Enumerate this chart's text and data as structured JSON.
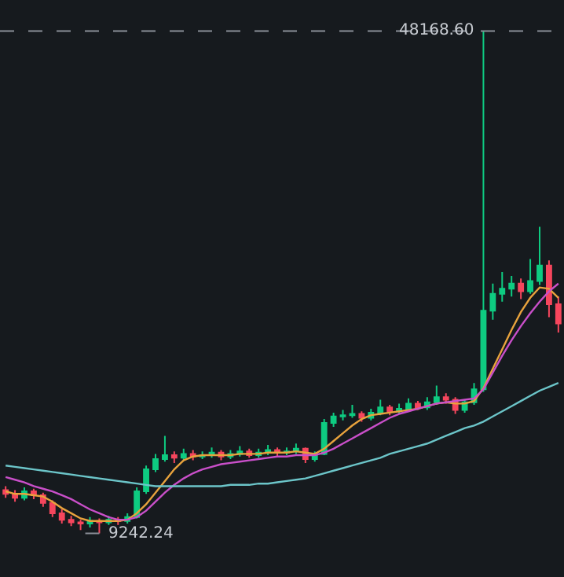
{
  "chart_data": {
    "type": "candlestick",
    "categories": [
      null,
      null,
      null,
      null,
      null,
      null,
      null,
      null,
      null,
      null,
      null,
      null,
      null,
      null,
      null,
      null,
      null,
      null,
      null,
      null,
      null,
      null,
      null,
      null,
      null,
      null,
      null,
      null,
      null,
      null,
      null,
      null,
      null,
      null,
      null,
      null,
      null,
      null,
      null,
      null,
      null,
      null,
      null,
      null,
      null,
      null,
      null,
      null,
      null,
      null,
      null,
      null,
      null,
      null,
      null,
      null,
      null,
      null,
      null,
      null
    ],
    "ohlc": [
      [
        12600,
        12900,
        12000,
        12300
      ],
      [
        12300,
        12600,
        11700,
        12000
      ],
      [
        12000,
        12800,
        11800,
        12500
      ],
      [
        12500,
        12700,
        11900,
        12200
      ],
      [
        12200,
        12400,
        11300,
        11600
      ],
      [
        11600,
        11800,
        10500,
        10800
      ],
      [
        10800,
        11100,
        10000,
        10300
      ],
      [
        10300,
        10600,
        9800,
        10100
      ],
      [
        10100,
        10300,
        9500,
        10000
      ],
      [
        10000,
        10500,
        9700,
        10200
      ],
      [
        10200,
        10400,
        9242.24,
        10100
      ],
      [
        10100,
        10600,
        9900,
        10300
      ],
      [
        10300,
        10500,
        9900,
        10200
      ],
      [
        10200,
        10800,
        10000,
        10500
      ],
      [
        10500,
        12800,
        10400,
        12500
      ],
      [
        12500,
        14500,
        12300,
        14200
      ],
      [
        14200,
        15400,
        14000,
        15000
      ],
      [
        15000,
        16800,
        14800,
        15300
      ],
      [
        15300,
        15600,
        14700,
        15100
      ],
      [
        15100,
        15800,
        14900,
        15400
      ],
      [
        15400,
        15700,
        14900,
        15200
      ],
      [
        15200,
        15600,
        15000,
        15300
      ],
      [
        15300,
        15900,
        15100,
        15500
      ],
      [
        15500,
        15700,
        14900,
        15200
      ],
      [
        15200,
        15700,
        15000,
        15400
      ],
      [
        15400,
        16000,
        15200,
        15600
      ],
      [
        15600,
        15800,
        15100,
        15300
      ],
      [
        15300,
        15800,
        15100,
        15500
      ],
      [
        15500,
        16100,
        15300,
        15700
      ],
      [
        15700,
        15900,
        15200,
        15500
      ],
      [
        15500,
        15900,
        15300,
        15600
      ],
      [
        15600,
        16200,
        15400,
        15800
      ],
      [
        15800,
        15900,
        14700,
        15000
      ],
      [
        15000,
        15600,
        14800,
        15400
      ],
      [
        15400,
        18100,
        15300,
        17800
      ],
      [
        17800,
        18600,
        17500,
        18300
      ],
      [
        18300,
        18800,
        18000,
        18400
      ],
      [
        18400,
        19200,
        18200,
        18500
      ],
      [
        18500,
        18700,
        17900,
        18200
      ],
      [
        18200,
        18900,
        18000,
        18600
      ],
      [
        18600,
        19600,
        18400,
        19000
      ],
      [
        19000,
        19200,
        18400,
        18700
      ],
      [
        18700,
        19300,
        18500,
        18900
      ],
      [
        18900,
        19700,
        18700,
        19300
      ],
      [
        19300,
        19500,
        18800,
        19000
      ],
      [
        19000,
        19800,
        18800,
        19400
      ],
      [
        19400,
        20700,
        19200,
        19800
      ],
      [
        19800,
        20100,
        19300,
        19600
      ],
      [
        19600,
        19800,
        18500,
        18800
      ],
      [
        18800,
        19600,
        18600,
        19400
      ],
      [
        19400,
        20900,
        19200,
        20400
      ],
      [
        20400,
        48168.6,
        20200,
        26500
      ],
      [
        26500,
        28600,
        25800,
        27800
      ],
      [
        27800,
        29500,
        27200,
        28200
      ],
      [
        28200,
        29200,
        27600,
        28600
      ],
      [
        28600,
        29000,
        27400,
        28000
      ],
      [
        28000,
        30500,
        27800,
        28800
      ],
      [
        28800,
        33000,
        28500,
        30000
      ],
      [
        30000,
        30400,
        26000,
        27000
      ],
      [
        27000,
        27600,
        24800,
        25500
      ]
    ],
    "colors": [
      "#f6465d",
      "#f6465d",
      "#0ecb81",
      "#f6465d",
      "#f6465d",
      "#f6465d",
      "#f6465d",
      "#f6465d",
      "#f6465d",
      "#0ecb81",
      "#f6465d",
      "#0ecb81",
      "#f6465d",
      "#0ecb81",
      "#0ecb81",
      "#0ecb81",
      "#0ecb81",
      "#0ecb81",
      "#f6465d",
      "#0ecb81",
      "#f6465d",
      "#0ecb81",
      "#0ecb81",
      "#f6465d",
      "#0ecb81",
      "#0ecb81",
      "#f6465d",
      "#0ecb81",
      "#0ecb81",
      "#f6465d",
      "#0ecb81",
      "#0ecb81",
      "#f6465d",
      "#0ecb81",
      "#0ecb81",
      "#0ecb81",
      "#0ecb81",
      "#0ecb81",
      "#f6465d",
      "#0ecb81",
      "#0ecb81",
      "#f6465d",
      "#0ecb81",
      "#0ecb81",
      "#f6465d",
      "#0ecb81",
      "#0ecb81",
      "#f6465d",
      "#f6465d",
      "#0ecb81",
      "#0ecb81",
      "#0ecb81",
      "#0ecb81",
      "#0ecb81",
      "#0ecb81",
      "#f6465d",
      "#0ecb81",
      "#0ecb81",
      "#f6465d",
      "#f6465d"
    ],
    "series": [
      {
        "type": "line",
        "color": "#e8a33d",
        "values": [
          12500,
          12300,
          12300,
          12200,
          12100,
          11700,
          11200,
          10800,
          10400,
          10200,
          10200,
          10200,
          10200,
          10300,
          10800,
          11500,
          12400,
          13300,
          14200,
          14900,
          15200,
          15300,
          15300,
          15300,
          15300,
          15400,
          15400,
          15400,
          15500,
          15500,
          15500,
          15600,
          15500,
          15400,
          15800,
          16400,
          17000,
          17600,
          18100,
          18400,
          18500,
          18600,
          18700,
          18800,
          18900,
          19100,
          19300,
          19400,
          19300,
          19300,
          19500,
          20500,
          22000,
          23500,
          25000,
          26400,
          27500,
          28300,
          28200,
          27500
        ]
      },
      {
        "type": "line",
        "color": "#c94fc9",
        "values": [
          13600,
          13400,
          13200,
          12900,
          12700,
          12500,
          12200,
          11900,
          11500,
          11100,
          10800,
          10500,
          10300,
          10300,
          10500,
          11000,
          11700,
          12400,
          13000,
          13500,
          13900,
          14200,
          14400,
          14600,
          14700,
          14800,
          14900,
          15000,
          15100,
          15200,
          15200,
          15300,
          15300,
          15300,
          15500,
          15800,
          16200,
          16600,
          17000,
          17400,
          17800,
          18200,
          18500,
          18700,
          18900,
          19100,
          19300,
          19400,
          19500,
          19600,
          19700,
          20400,
          21700,
          23000,
          24200,
          25300,
          26300,
          27200,
          28000,
          28600
        ]
      },
      {
        "type": "line",
        "color": "#6cc5c9",
        "values": [
          14500,
          14400,
          14300,
          14200,
          14100,
          14000,
          13900,
          13800,
          13700,
          13600,
          13500,
          13400,
          13300,
          13200,
          13100,
          13000,
          12900,
          12900,
          12900,
          12900,
          12900,
          12900,
          12900,
          12900,
          13000,
          13000,
          13000,
          13100,
          13100,
          13200,
          13300,
          13400,
          13500,
          13700,
          13900,
          14100,
          14300,
          14500,
          14700,
          14900,
          15100,
          15400,
          15600,
          15800,
          16000,
          16200,
          16500,
          16800,
          17100,
          17400,
          17600,
          17900,
          18300,
          18700,
          19100,
          19500,
          19900,
          20300,
          20600,
          20900
        ]
      }
    ],
    "annotations": [
      "48168.60",
      "9242.24"
    ]
  }
}
